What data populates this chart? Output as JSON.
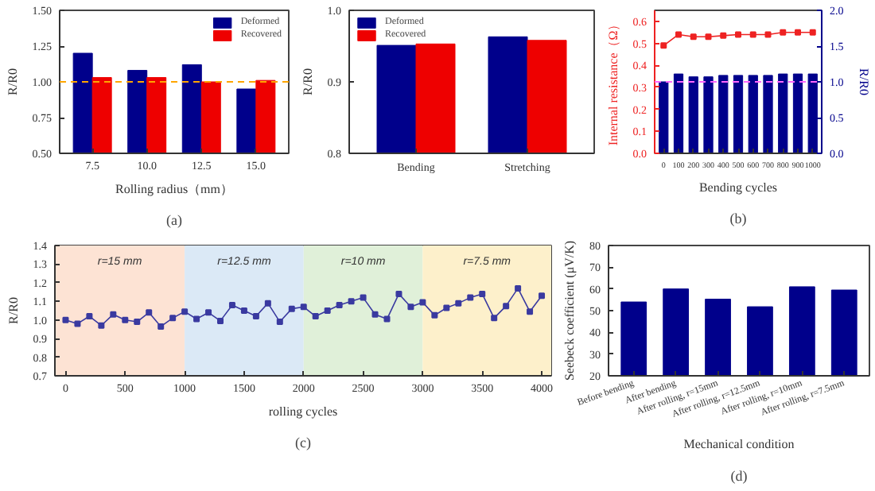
{
  "chart_data": [
    {
      "type": "bar",
      "categories": [
        "7.5",
        "10.0",
        "12.5",
        "15.0"
      ],
      "xlabel": "Rolling radius（mm）",
      "ylabel": "R/R0",
      "ylim": [
        0.5,
        1.5
      ],
      "yticks": [
        {
          "value": 0.5,
          "label": "0.50"
        },
        0.75,
        {
          "value": 1,
          "label": "1.00"
        },
        1.25,
        {
          "value": 1.5,
          "label": "1.50"
        }
      ],
      "grid": false,
      "legend": "top right",
      "series": [
        {
          "name": "Deformed",
          "color": "#00008b",
          "values": [
            1.2,
            1.08,
            1.12,
            0.95
          ]
        },
        {
          "name": "Recovered",
          "color": "#ee0000",
          "values": [
            1.03,
            1.03,
            1.0,
            1.01
          ]
        }
      ],
      "ref_lines": [
        {
          "axis": "y",
          "value": 1.0,
          "color": "#ffa500",
          "line_style": "dashed"
        }
      ],
      "annotations": [
        "(a)"
      ]
    },
    {
      "type": "bar",
      "categories": [
        "Bending",
        "Stretching"
      ],
      "ylabel": "R/R0",
      "ylim": [
        0.8,
        1.0
      ],
      "yticks": [
        0.8,
        0.9,
        {
          "value": 1.0,
          "label": "1.0"
        }
      ],
      "grid": false,
      "legend": "top left",
      "series": [
        {
          "name": "Deformed",
          "color": "#00008b",
          "values": [
            0.951,
            0.963
          ]
        },
        {
          "name": "Recovered",
          "color": "#ee0000",
          "values": [
            0.953,
            0.958
          ]
        }
      ]
    },
    {
      "type": "bar",
      "categories": [
        "0",
        "100",
        "200",
        "300",
        "400",
        "500",
        "600",
        "700",
        "800",
        "900",
        "1000"
      ],
      "xlabel": "Bending cycles",
      "ylabel": "Internal resistance（Ω）",
      "y2label": "R/R0",
      "ylim": [
        0,
        0.65
      ],
      "yticks": [
        {
          "value": 0,
          "label": "0.0"
        },
        0.1,
        0.2,
        0.3,
        0.4,
        0.5,
        0.6
      ],
      "y2lim": [
        0,
        2.0
      ],
      "y2ticks": [
        {
          "value": 0,
          "label": "0.0"
        },
        0.5,
        {
          "value": 1,
          "label": "1.0"
        },
        1.5,
        {
          "value": 2,
          "label": "2.0"
        }
      ],
      "grid": false,
      "marker": "square",
      "series": [
        {
          "type": "bar",
          "axis": "y2",
          "color": "#00008b",
          "values": [
            1.0,
            1.11,
            1.07,
            1.07,
            1.09,
            1.09,
            1.09,
            1.09,
            1.11,
            1.11,
            1.11
          ]
        },
        {
          "type": "line",
          "axis": "y",
          "color": "#ee2222",
          "values": [
            0.49,
            0.54,
            0.53,
            0.53,
            0.535,
            0.54,
            0.54,
            0.54,
            0.55,
            0.55,
            0.55
          ]
        }
      ],
      "ref_lines": [
        {
          "axis": "y2",
          "value": 1.0,
          "color": "#ff66ff",
          "line_style": "dashed"
        }
      ],
      "annotations": [
        "(b)"
      ]
    },
    {
      "type": "line",
      "xlabel": "rolling cycles",
      "ylabel": "R/R0",
      "xlim": [
        -90,
        4080
      ],
      "xticks": [
        0,
        500,
        1000,
        1500,
        2000,
        2500,
        3000,
        3500,
        4000
      ],
      "ylim": [
        0.7,
        1.4
      ],
      "yticks": [
        0.7,
        0.8,
        0.9,
        {
          "value": 1.0,
          "label": "1.0"
        },
        1.1,
        1.2,
        1.3,
        1.4
      ],
      "grid": false,
      "marker": "square",
      "x": [
        0,
        100,
        200,
        300,
        400,
        500,
        600,
        700,
        800,
        900,
        1000,
        1100,
        1200,
        1300,
        1400,
        1500,
        1600,
        1700,
        1800,
        1900,
        2000,
        2100,
        2200,
        2300,
        2400,
        2500,
        2600,
        2700,
        2800,
        2900,
        3000,
        3100,
        3200,
        3300,
        3400,
        3500,
        3600,
        3700,
        3800,
        3900,
        4000
      ],
      "series": [
        {
          "color": "#3a3aa0",
          "values": [
            1.0,
            0.98,
            1.02,
            0.97,
            1.03,
            1.0,
            0.99,
            1.04,
            0.965,
            1.01,
            1.045,
            1.005,
            1.04,
            0.995,
            1.08,
            1.05,
            1.02,
            1.09,
            0.99,
            1.06,
            1.07,
            1.02,
            1.05,
            1.08,
            1.1,
            1.12,
            1.03,
            1.005,
            1.14,
            1.07,
            1.095,
            1.025,
            1.065,
            1.09,
            1.12,
            1.14,
            1.01,
            1.075,
            1.17,
            1.045,
            1.13
          ]
        }
      ],
      "bands": [
        {
          "axis": "x",
          "from": -90,
          "to": 1000,
          "label": "r=15 mm",
          "color": "#fde3d4"
        },
        {
          "axis": "x",
          "from": 1000,
          "to": 2000,
          "label": "r=12.5 mm",
          "color": "#dbe9f6"
        },
        {
          "axis": "x",
          "from": 2000,
          "to": 3000,
          "label": "r=10 mm",
          "color": "#e0f0d9"
        },
        {
          "axis": "x",
          "from": 3000,
          "to": 4080,
          "label": "r=7.5 mm",
          "color": "#fdf0cb"
        }
      ],
      "annotations": [
        "(c)"
      ]
    },
    {
      "type": "bar",
      "categories": [
        "Before bending",
        "After bending",
        "After rolling, r=15mm",
        "After rolling, r=12.5mm",
        "After rolling, r=10mm",
        "After rolling, r=7.5mm"
      ],
      "xlabel": "Mechanical condition",
      "ylabel": "Seebeck coefficient (μV/K)",
      "ylim": [
        20,
        80
      ],
      "yticks": [
        20,
        30,
        40,
        50,
        60,
        70,
        80
      ],
      "grid": false,
      "series": [
        {
          "color": "#00008b",
          "values": [
            54,
            60,
            55.3,
            51.8,
            61,
            59.5
          ]
        }
      ],
      "annotations": [
        "(d)"
      ]
    }
  ]
}
